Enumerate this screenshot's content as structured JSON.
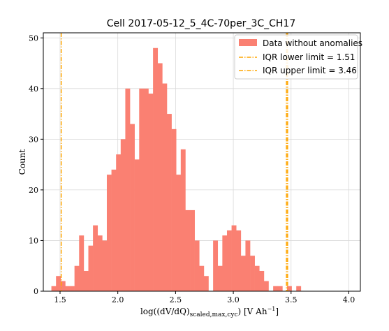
{
  "chart_data": {
    "type": "histogram",
    "title": "Cell 2017-05-12_5_4C-70per_3C_CH17",
    "xlabel": "log((dV/dQ)",
    "xlabel_sub": "scaled,max,cyc",
    "xlabel_mid": ") [V Ah",
    "xlabel_sup": "−1",
    "xlabel_end": "]",
    "ylabel": "Count",
    "xlim": [
      1.355,
      4.1
    ],
    "ylim": [
      0,
      51
    ],
    "xticks": [
      1.5,
      2.0,
      2.5,
      3.0,
      3.5,
      4.0
    ],
    "xtick_labels": [
      "1.5",
      "2.0",
      "2.5",
      "3.0",
      "3.5",
      "4.0"
    ],
    "yticks": [
      0,
      10,
      20,
      30,
      40,
      50
    ],
    "ytick_labels": [
      "0",
      "10",
      "20",
      "30",
      "40",
      "50"
    ],
    "grid": true,
    "legend_position": "top-right",
    "bin_start": 1.425,
    "bin_width": 0.04,
    "counts": [
      1,
      3,
      2,
      1,
      1,
      5,
      11,
      4,
      9,
      13,
      11,
      10,
      23,
      24,
      27,
      30,
      40,
      33,
      26,
      40,
      40,
      39,
      48,
      45,
      41,
      35,
      32,
      23,
      28,
      16,
      16,
      10,
      5,
      3,
      0,
      10,
      5,
      11,
      12,
      13,
      12,
      7,
      10,
      7,
      5,
      4,
      2,
      0,
      1,
      1,
      0,
      1,
      0,
      1
    ],
    "series": [
      {
        "name": "Data without anomalies",
        "color": "#fa8072",
        "kind": "bars"
      }
    ],
    "vlines": [
      {
        "name": "IQR lower limit = 1.51",
        "x": 1.51,
        "color": "#ffa500",
        "style": "dashdot"
      },
      {
        "name": "IQR upper limit = 3.46",
        "x": 3.46,
        "color": "#ffa500",
        "style": "dashdot"
      },
      {
        "x": 3.47,
        "color": "#ffa500",
        "style": "dashdot"
      }
    ]
  }
}
